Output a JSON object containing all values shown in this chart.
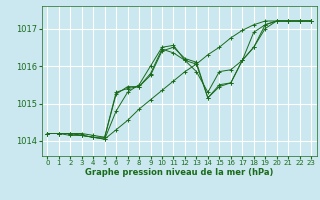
{
  "bg_color": "#cbe8f0",
  "grid_color": "#ffffff",
  "line_color": "#1a6b1a",
  "xlabel": "Graphe pression niveau de la mer (hPa)",
  "xlim": [
    -0.5,
    23.5
  ],
  "ylim": [
    1013.6,
    1017.6
  ],
  "yticks": [
    1014,
    1015,
    1016,
    1017
  ],
  "xticks": [
    0,
    1,
    2,
    3,
    4,
    5,
    6,
    7,
    8,
    9,
    10,
    11,
    12,
    13,
    14,
    15,
    16,
    17,
    18,
    19,
    20,
    21,
    22,
    23
  ],
  "series": [
    [
      1014.2,
      1014.2,
      1014.2,
      1014.2,
      1014.15,
      1014.1,
      1015.3,
      1015.4,
      1015.45,
      1015.8,
      1016.45,
      1016.35,
      1016.15,
      1015.85,
      1015.3,
      1015.85,
      1015.9,
      1016.15,
      1016.9,
      1017.1,
      1017.2,
      1017.2,
      1017.2,
      1017.2
    ],
    [
      1014.2,
      1014.2,
      1014.15,
      1014.15,
      1014.1,
      1014.05,
      1014.3,
      1014.55,
      1014.85,
      1015.1,
      1015.35,
      1015.6,
      1015.85,
      1016.05,
      1016.3,
      1016.5,
      1016.75,
      1016.95,
      1017.1,
      1017.2,
      1017.2,
      1017.2,
      1017.2,
      1017.2
    ],
    [
      1014.2,
      1014.2,
      1014.2,
      1014.15,
      1014.1,
      1014.1,
      1015.25,
      1015.45,
      1015.45,
      1015.75,
      1016.4,
      1016.5,
      1016.2,
      1016.1,
      1015.15,
      1015.5,
      1015.55,
      1016.15,
      1016.5,
      1017.1,
      1017.2,
      1017.2,
      1017.2,
      1017.2
    ],
    [
      1014.2,
      1014.2,
      1014.2,
      1014.15,
      1014.1,
      1014.05,
      1014.8,
      1015.3,
      1015.5,
      1016.0,
      1016.5,
      1016.55,
      1016.15,
      1016.05,
      1015.15,
      1015.45,
      1015.55,
      1016.15,
      1016.5,
      1017.0,
      1017.2,
      1017.2,
      1017.2,
      1017.2
    ]
  ],
  "xlabel_fontsize": 6,
  "xlabel_fontweight": "bold",
  "ytick_fontsize": 6,
  "xtick_fontsize": 5
}
